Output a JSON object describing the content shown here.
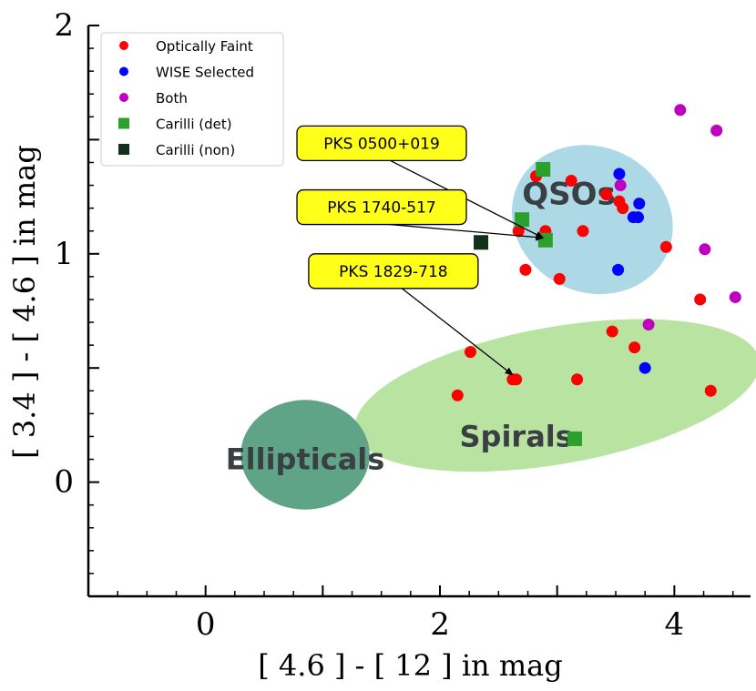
{
  "chart_data": {
    "type": "scatter",
    "xlabel": "[ 4.6 ] - [ 12 ] in mag",
    "ylabel": "[ 3.4 ] - [ 4.6 ] in mag",
    "xlim": [
      -1.0,
      4.65
    ],
    "ylim": [
      -0.5,
      2.0
    ],
    "x_ticks": [
      0,
      2,
      4
    ],
    "y_ticks": [
      0,
      1,
      2
    ],
    "grid": false,
    "legend_position": "top-left",
    "regions": [
      {
        "label": "QSOs",
        "color": "#add8e6",
        "center": [
          3.3,
          1.15
        ],
        "semi_major": 0.62,
        "semi_minor": 0.36,
        "angle_deg": 64
      },
      {
        "label": "Spirals",
        "color": "#b9e3a0",
        "center": [
          3.0,
          0.38
        ],
        "semi_major": 1.75,
        "semi_minor": 0.3,
        "angle_deg": 10
      },
      {
        "label": "Ellipticals",
        "color": "#5fa487",
        "center": [
          0.85,
          0.12
        ],
        "semi_major": 0.55,
        "semi_minor": 0.24,
        "angle_deg": 0
      }
    ],
    "series": [
      {
        "name": "Optically Faint",
        "marker": "circle",
        "color": "#ff0000",
        "points": [
          [
            2.67,
            1.1
          ],
          [
            2.82,
            1.34
          ],
          [
            3.12,
            1.32
          ],
          [
            2.73,
            0.93
          ],
          [
            2.88,
            1.07
          ],
          [
            2.9,
            1.1
          ],
          [
            3.02,
            0.89
          ],
          [
            3.22,
            1.1
          ],
          [
            3.42,
            1.26
          ],
          [
            3.53,
            1.23
          ],
          [
            3.56,
            1.2
          ],
          [
            3.93,
            1.03
          ],
          [
            4.22,
            0.8
          ],
          [
            3.47,
            0.66
          ],
          [
            3.66,
            0.59
          ],
          [
            2.26,
            0.57
          ],
          [
            2.15,
            0.38
          ],
          [
            2.62,
            0.45
          ],
          [
            2.65,
            0.45
          ],
          [
            3.17,
            0.45
          ],
          [
            4.31,
            0.4
          ]
        ]
      },
      {
        "name": "WISE Selected",
        "marker": "circle",
        "color": "#0000ff",
        "points": [
          [
            3.53,
            1.35
          ],
          [
            3.7,
            1.22
          ],
          [
            3.65,
            1.16
          ],
          [
            3.69,
            1.16
          ],
          [
            3.52,
            0.93
          ],
          [
            3.75,
            0.5
          ]
        ]
      },
      {
        "name": "Both",
        "marker": "circle",
        "color": "#c000c0",
        "points": [
          [
            4.05,
            1.63
          ],
          [
            4.36,
            1.54
          ],
          [
            3.54,
            1.3
          ],
          [
            4.26,
            1.02
          ],
          [
            4.52,
            0.81
          ],
          [
            3.78,
            0.69
          ]
        ]
      },
      {
        "name": "Carilli (det)",
        "marker": "square",
        "color": "#2ca02c",
        "points": [
          [
            2.88,
            1.37
          ],
          [
            2.7,
            1.15
          ],
          [
            2.9,
            1.06
          ],
          [
            3.15,
            0.19
          ]
        ]
      },
      {
        "name": "Carilli (non)",
        "marker": "square",
        "color": "#12301a",
        "points": [
          [
            2.35,
            1.05
          ]
        ]
      }
    ],
    "annotations": [
      {
        "text": "PKS 0500+019",
        "box": [
          0.78,
          1.56
        ],
        "target": [
          2.88,
          1.07
        ]
      },
      {
        "text": "PKS 1740-517",
        "box": [
          0.78,
          1.28
        ],
        "target": [
          2.88,
          1.07
        ]
      },
      {
        "text": "PKS 1829-718",
        "box": [
          0.88,
          1.0
        ],
        "target": [
          2.62,
          0.47
        ]
      }
    ]
  }
}
